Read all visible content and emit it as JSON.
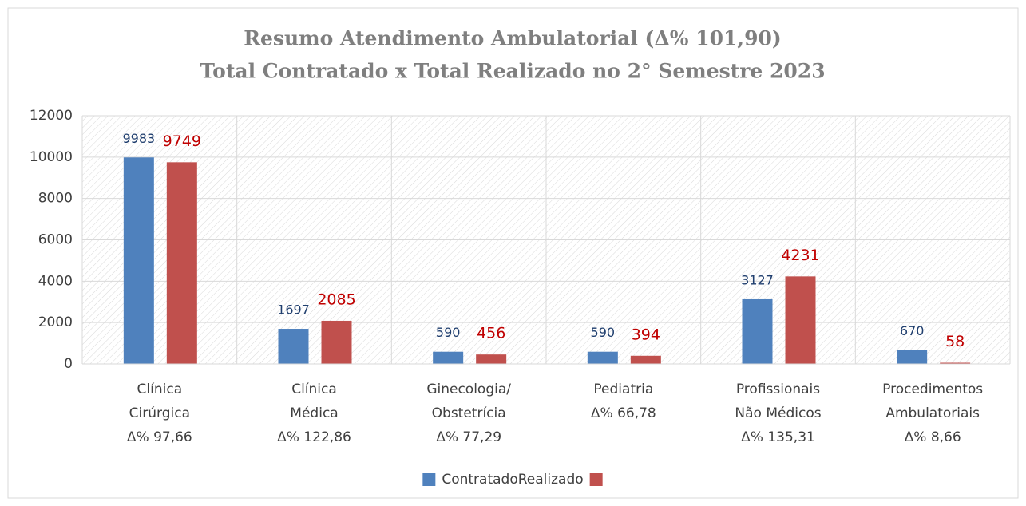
{
  "chart_data": {
    "type": "bar",
    "title": "Resumo Atendimento Ambulatorial (Δ% 101,90)",
    "subtitle": "Total Contratado x Total Realizado no 2° Semestre 2023",
    "categories": [
      [
        "Clínica",
        "Cirúrgica",
        "Δ% 97,66"
      ],
      [
        "Clínica",
        "Médica",
        "Δ% 122,86"
      ],
      [
        "Ginecologia/",
        "Obstetrícia",
        "Δ% 77,29"
      ],
      [
        "Pediatria",
        "Δ% 66,78"
      ],
      [
        "Profissionais",
        "Não Médicos",
        "Δ% 135,31"
      ],
      [
        "Procedimentos",
        "Ambulatoriais",
        "Δ% 8,66"
      ]
    ],
    "series": [
      {
        "name": "Contratado",
        "color": "#4f81bd",
        "label_color": "#1f3e6e",
        "values": [
          9983,
          1697,
          590,
          590,
          3127,
          670
        ]
      },
      {
        "name": "Realizado",
        "color": "#c0504d",
        "label_color": "#c00000",
        "values": [
          9749,
          2085,
          456,
          394,
          4231,
          58
        ]
      }
    ],
    "ylim": [
      0,
      12000
    ],
    "yticks": [
      0,
      2000,
      4000,
      6000,
      8000,
      10000,
      12000
    ],
    "grid": true,
    "legend": "bottom"
  }
}
